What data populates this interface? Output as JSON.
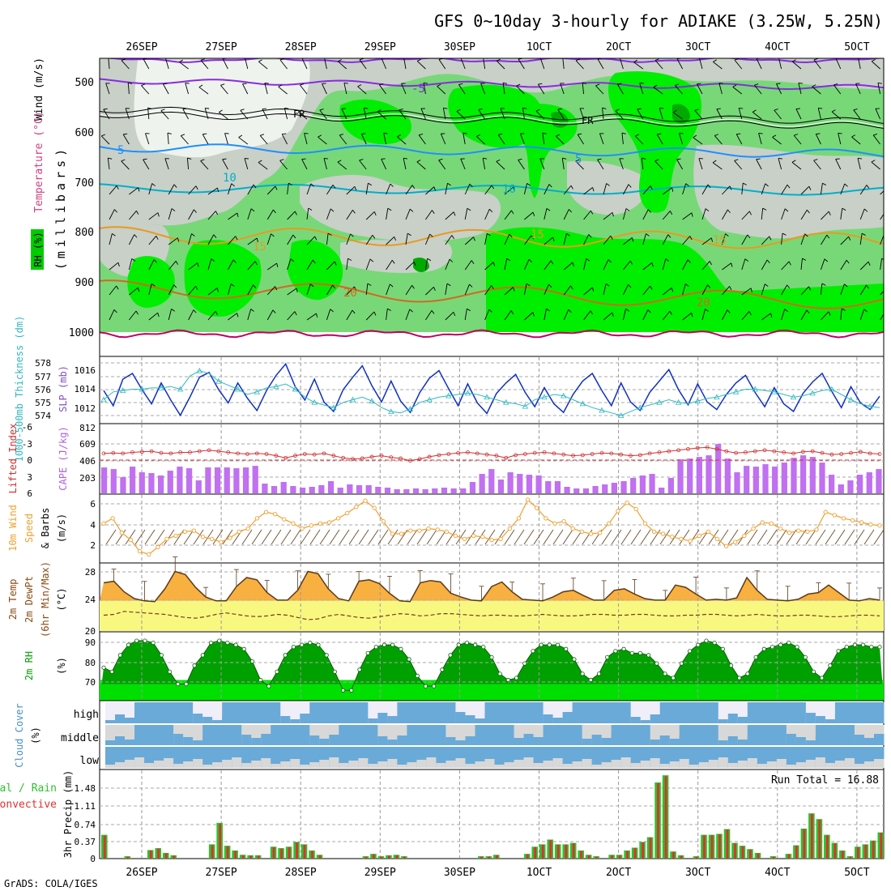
{
  "title": "GFS 0~10day 3-hourly for ADIAKE (3.25W, 5.25N)",
  "credit": "GrADS: COLA/IGES",
  "dates": [
    "26SEP",
    "27SEP",
    "28SEP",
    "29SEP",
    "30SEP",
    "1OCT",
    "2OCT",
    "3OCT",
    "4OCT",
    "5OCT"
  ],
  "colors": {
    "rh_light": "#c8d0c8",
    "rh_mid": "#78d878",
    "rh_high": "#00ee00",
    "rh_top": "#00aa00",
    "temp_purple": "#8a2be2",
    "temp_blue": "#1e90ff",
    "temp_cyan": "#00b0c8",
    "temp_orange": "#e89a20",
    "temp_dark_orange": "#d2691e",
    "temp_crimson": "#c00060",
    "slp": "#1030c0",
    "thickness": "#30b8c0",
    "lifted_index": "#d03030",
    "cape": "#c070f0",
    "wind10m": "#f0a030",
    "temp2m_fill": "#f8b040",
    "dewpt_fill": "#f8f880",
    "rh2m_dark": "#00a000",
    "rh2m_light": "#00e000",
    "cloud_blue": "#6aaad8",
    "cloud_gray": "#d8d8d8",
    "precip_green": "#30c030",
    "precip_red": "#e03030"
  },
  "panels": {
    "upper": {
      "label_rh": "RH (%)",
      "label_temp": "Temperature (°C)",
      "label_wind": "Wind (m/s)",
      "label_pressure": "(millibars)",
      "levels": [
        "500",
        "600",
        "700",
        "800",
        "900",
        "1000"
      ],
      "contour_labels": [
        "-5",
        "FR",
        "FR",
        "5",
        "5",
        "10",
        "10",
        "15",
        "15",
        "20",
        "20",
        "15"
      ]
    },
    "thickness": {
      "label_left": "1000-500mb Thickness (dm)",
      "label_right": "SLP (mb)",
      "thickness_ticks": [
        "578",
        "577",
        "576",
        "575",
        "574"
      ],
      "slp_ticks": [
        "1016",
        "1014",
        "1012"
      ]
    },
    "cape": {
      "label_left": "Lifted Index",
      "label_right": "CAPE (J/kg)",
      "li_ticks": [
        "-6",
        "-3",
        "0",
        "3",
        "6"
      ],
      "cape_ticks": [
        "812",
        "609",
        "406",
        "203"
      ]
    },
    "wind10m": {
      "label_a": "10m Wind",
      "label_b": "Speed",
      "label_c": "& Barbs",
      "label_unit": "(m/s)",
      "ticks": [
        "6",
        "4",
        "2"
      ]
    },
    "temp2m": {
      "label_a": "2m Temp",
      "label_b": "2m DewPt",
      "label_c": "(6hr Min/Max)",
      "label_unit": "(°C)",
      "ticks": [
        "28",
        "24",
        "20"
      ]
    },
    "rh2m": {
      "label_a": "2m RH",
      "label_unit": "(%)",
      "ticks": [
        "90",
        "80",
        "70"
      ]
    },
    "cloud": {
      "label_a": "Cloud Cover",
      "label_unit": "(%)",
      "layers": [
        "high",
        "middle",
        "low"
      ]
    },
    "precip": {
      "label_total": "Total / Rain",
      "label_conv": "Convective",
      "label_unit": "3hr Precip (mm)",
      "ticks": [
        "1.48",
        "1.11",
        "0.74",
        "0.37",
        "0"
      ],
      "run_total": "Run Total = 16.88"
    }
  },
  "chart_data": [
    {
      "type": "line",
      "title": "1000-500mb Thickness (dm) / SLP (mb)",
      "series": [
        {
          "name": "SLP (mb)",
          "values": [
            1014.2,
            1012.6,
            1015.4,
            1016.0,
            1014.3,
            1012.8,
            1015.0,
            1013.2,
            1011.6,
            1013.5,
            1015.6,
            1016.1,
            1014.3,
            1012.9,
            1015.0,
            1013.4,
            1012.1,
            1014.2,
            1015.8,
            1017.0,
            1014.6,
            1013.2,
            1015.4,
            1013.0,
            1012.0,
            1014.3,
            1015.6,
            1016.8,
            1014.7,
            1013.0,
            1015.2,
            1013.1,
            1011.9,
            1014.0,
            1015.5,
            1016.3,
            1014.4,
            1012.6,
            1014.9,
            1012.9,
            1011.8,
            1013.9,
            1015.0,
            1015.9,
            1014.0,
            1012.5,
            1014.5,
            1012.8,
            1011.9,
            1013.8,
            1015.2,
            1016.0,
            1014.2,
            1012.6,
            1015.0,
            1013.0,
            1012.1,
            1014.0,
            1015.2,
            1016.4,
            1014.3,
            1012.7,
            1014.9,
            1013.0,
            1012.2,
            1013.8,
            1015.0,
            1015.8,
            1014.0,
            1012.5,
            1014.5,
            1012.8,
            1012.0,
            1013.9,
            1015.1,
            1016.0,
            1014.1,
            1012.4,
            1014.6,
            1012.9,
            1012.2,
            1013.6
          ]
        },
        {
          "name": "Thickness (dm)",
          "values": [
            575.2,
            575.8,
            575.9,
            576.0,
            576.0,
            576.1,
            576.1,
            576.2,
            576.0,
            577.0,
            577.4,
            577.2,
            576.6,
            576.3,
            576.0,
            575.6,
            575.8,
            576.1,
            576.2,
            576.4,
            576.0,
            575.4,
            575.0,
            574.8,
            574.6,
            575.0,
            575.2,
            575.4,
            575.1,
            574.6,
            574.3,
            574.2,
            574.5,
            575.0,
            575.2,
            575.4,
            575.5,
            575.6,
            575.7,
            575.6,
            575.4,
            575.2,
            575.0,
            574.9,
            574.7,
            575.2,
            575.4,
            575.6,
            575.5,
            575.2,
            574.9,
            574.6,
            574.4,
            574.2,
            574.0,
            574.3,
            574.6,
            574.8,
            575.0,
            575.2,
            575.0,
            574.9,
            575.1,
            575.3,
            575.4,
            575.6,
            575.8,
            576.0,
            576.0,
            575.9,
            575.8,
            575.6,
            575.4,
            575.5,
            575.7,
            575.9,
            576.0,
            575.6,
            575.2,
            574.9,
            574.7,
            574.6
          ]
        }
      ]
    },
    {
      "type": "bar",
      "title": "Lifted Index / CAPE (J/kg)",
      "series": [
        {
          "name": "CAPE (J/kg)",
          "values": [
            320,
            300,
            200,
            330,
            260,
            250,
            220,
            280,
            330,
            310,
            160,
            320,
            320,
            320,
            310,
            320,
            340,
            120,
            90,
            140,
            90,
            70,
            80,
            100,
            150,
            70,
            110,
            100,
            100,
            80,
            70,
            50,
            50,
            60,
            50,
            60,
            70,
            60,
            60,
            140,
            240,
            300,
            170,
            260,
            240,
            230,
            220,
            150,
            150,
            80,
            60,
            60,
            90,
            110,
            130,
            150,
            190,
            220,
            240,
            70,
            190,
            420,
            430,
            450,
            470,
            610,
            430,
            260,
            340,
            330,
            360,
            330,
            380,
            440,
            470,
            450,
            380,
            230,
            110,
            160,
            230,
            260,
            300
          ]
        },
        {
          "name": "Lifted Index",
          "values": [
            -1.2,
            -1.3,
            -1.2,
            -1.4,
            -1.5,
            -1.6,
            -1.3,
            -1.2,
            -1.4,
            -1.4,
            -1.6,
            -1.8,
            -1.6,
            -1.4,
            -1.2,
            -1.1,
            -1.2,
            -1.1,
            -0.8,
            -0.4,
            -0.8,
            -1.1,
            -1.0,
            -1.2,
            -0.8,
            -0.4,
            -0.2,
            -0.3,
            -0.6,
            -0.8,
            -0.5,
            -0.3,
            0.1,
            -0.2,
            -0.6,
            -0.9,
            -1.1,
            -1.3,
            -1.4,
            -1.2,
            -1.0,
            -0.8,
            -0.4,
            -0.9,
            -1.1,
            -1.3,
            -1.4,
            -1.2,
            -1.0,
            -0.8,
            -0.9,
            -1.1,
            -1.3,
            -1.2,
            -1.0,
            -0.8,
            -0.9,
            -1.2,
            -1.4,
            -1.6,
            -1.8,
            -2.0,
            -2.2,
            -2.3,
            -2.0,
            -1.6,
            -1.3,
            -1.4,
            -1.6,
            -1.8,
            -1.6,
            -1.4,
            -1.2,
            -1.5,
            -1.6,
            -1.3,
            -1.0,
            -1.1,
            -1.3,
            -1.5,
            -1.2,
            -1.1
          ]
        }
      ]
    },
    {
      "type": "line",
      "title": "10m Wind Speed & Barbs (m/s)",
      "series": [
        {
          "name": "10m Wind Speed",
          "values": [
            4.1,
            4.6,
            3.2,
            2.5,
            1.4,
            1.1,
            1.8,
            2.6,
            2.9,
            3.3,
            3.4,
            2.8,
            2.6,
            2.3,
            2.7,
            3.3,
            3.6,
            4.6,
            5.2,
            5.0,
            4.5,
            4.1,
            3.6,
            3.9,
            4.1,
            4.2,
            4.6,
            5.1,
            5.7,
            6.3,
            5.6,
            4.3,
            3.1,
            3.1,
            3.4,
            3.4,
            3.6,
            3.5,
            3.3,
            2.9,
            2.6,
            2.9,
            2.8,
            2.5,
            2.6,
            3.6,
            4.6,
            6.4,
            5.6,
            4.6,
            4.1,
            4.3,
            3.6,
            3.3,
            3.1,
            3.2,
            4.1,
            5.3,
            6.1,
            5.5,
            4.1,
            3.3,
            3.1,
            2.8,
            2.6,
            2.4,
            2.9,
            3.3,
            2.6,
            1.9,
            2.3,
            2.9,
            3.6,
            4.2,
            4.1,
            3.6,
            3.2,
            3.4,
            3.3,
            3.5,
            5.2,
            4.9,
            4.6,
            4.4,
            4.2,
            4.0,
            3.9
          ]
        }
      ]
    },
    {
      "type": "area",
      "title": "2m Temp / 2m DewPt (6hr Min/Max) (°C)",
      "series": [
        {
          "name": "2m Temp",
          "values": [
            26.4,
            26.6,
            25.2,
            24.3,
            24.0,
            23.9,
            25.6,
            27.9,
            27.5,
            25.8,
            24.5,
            24.0,
            24.0,
            25.9,
            27.1,
            26.8,
            25.1,
            24.1,
            24.1,
            25.4,
            27.9,
            27.6,
            25.6,
            24.3,
            24.0,
            26.6,
            26.8,
            26.3,
            25.0,
            24.0,
            23.9,
            26.4,
            26.7,
            26.5,
            25.0,
            24.5,
            24.1,
            24.0,
            25.9,
            26.5,
            25.2,
            24.2,
            24.1,
            24.0,
            24.5,
            25.2,
            25.4,
            24.7,
            24.1,
            24.1,
            25.4,
            25.6,
            24.9,
            24.3,
            24.1,
            24.1,
            26.1,
            25.8,
            24.9,
            24.1,
            24.2,
            24.1,
            24.4,
            27.1,
            25.4,
            24.2,
            24.1,
            24.0,
            24.2,
            24.9,
            25.1,
            26.1,
            25.1,
            24.1,
            24.0,
            24.3,
            24.1
          ]
        },
        {
          "name": "2m DewPt",
          "values": [
            22.1,
            22.2,
            22.6,
            22.5,
            22.4,
            22.3,
            22.2,
            22.0,
            21.8,
            21.7,
            21.9,
            22.2,
            22.4,
            22.2,
            22.0,
            21.9,
            22.0,
            22.2,
            22.1,
            21.8,
            21.5,
            21.6,
            22.0,
            22.2,
            22.0,
            21.8,
            21.7,
            21.9,
            22.1,
            22.3,
            22.2,
            22.0,
            22.1,
            22.3,
            22.3,
            22.2,
            22.1,
            22.0,
            22.1,
            22.1,
            22.0,
            22.0,
            22.1,
            22.2,
            22.1,
            22.0,
            22.0,
            22.1,
            22.2,
            22.2,
            22.1,
            22.1,
            22.2,
            22.2,
            22.1,
            22.0,
            22.0,
            22.1,
            22.1,
            22.2,
            22.2,
            22.1,
            22.0,
            22.1,
            22.2,
            22.1,
            22.0,
            22.0,
            22.1,
            22.1,
            22.0,
            21.9,
            21.9,
            22.0,
            22.1,
            22.1,
            22.0
          ]
        }
      ]
    },
    {
      "type": "area",
      "title": "2m RH (%)",
      "series": [
        {
          "name": "2m RH",
          "values": [
            78,
            76,
            84,
            89,
            91,
            91,
            90,
            84,
            76,
            70,
            70,
            79,
            84,
            90,
            91,
            90,
            89,
            87,
            81,
            72,
            69,
            76,
            84,
            88,
            89,
            90,
            89,
            84,
            76,
            67,
            67,
            77,
            85,
            88,
            89,
            89,
            87,
            82,
            74,
            69,
            69,
            77,
            84,
            89,
            90,
            89,
            88,
            83,
            75,
            72,
            73,
            80,
            86,
            89,
            89,
            89,
            87,
            82,
            75,
            72,
            75,
            83,
            86,
            87,
            85,
            85,
            84,
            80,
            75,
            73,
            80,
            86,
            89,
            91,
            90,
            87,
            79,
            73,
            75,
            83,
            87,
            88,
            89,
            90,
            88,
            83,
            76,
            73,
            79,
            86,
            88,
            89,
            89,
            88,
            88
          ]
        }
      ]
    },
    {
      "type": "bar",
      "title": "3hr Precip (mm) Total / Rain / Convective",
      "run_total": 16.88,
      "series": [
        {
          "name": "Total",
          "values": [
            0.5,
            0,
            0,
            0.05,
            0,
            0,
            0.18,
            0.22,
            0.12,
            0.07,
            0,
            0,
            0,
            0,
            0.3,
            0.75,
            0.27,
            0.17,
            0.08,
            0.07,
            0.07,
            0,
            0.25,
            0.22,
            0.25,
            0.35,
            0.3,
            0.17,
            0.08,
            0,
            0,
            0,
            0,
            0,
            0.05,
            0.1,
            0.05,
            0.07,
            0.08,
            0.05,
            0,
            0,
            0,
            0,
            0,
            0,
            0,
            0,
            0,
            0.05,
            0.05,
            0.08,
            0,
            0,
            0,
            0.1,
            0.25,
            0.3,
            0.4,
            0.3,
            0.3,
            0.33,
            0.17,
            0.08,
            0.05,
            0,
            0.08,
            0.08,
            0.17,
            0.23,
            0.35,
            0.45,
            1.6,
            1.75,
            0.15,
            0.07,
            0,
            0.05,
            0.5,
            0.5,
            0.52,
            0.62,
            0.33,
            0.27,
            0.2,
            0.12,
            0,
            0.05,
            0,
            0.1,
            0.28,
            0.63,
            0.95,
            0.83,
            0.5,
            0.33,
            0.17,
            0.05,
            0.25,
            0.3,
            0.38,
            0.55
          ]
        },
        {
          "name": "Convective",
          "values": [
            0.48,
            0,
            0,
            0.04,
            0,
            0,
            0.17,
            0.21,
            0.11,
            0.06,
            0,
            0,
            0,
            0,
            0.28,
            0.73,
            0.26,
            0.16,
            0.07,
            0.06,
            0.06,
            0,
            0.24,
            0.21,
            0.24,
            0.34,
            0.29,
            0.16,
            0.07,
            0,
            0,
            0,
            0,
            0,
            0.04,
            0.09,
            0.04,
            0.06,
            0.07,
            0.04,
            0,
            0,
            0,
            0,
            0,
            0,
            0,
            0,
            0,
            0.04,
            0.04,
            0.07,
            0,
            0,
            0,
            0.09,
            0.24,
            0.29,
            0.39,
            0.29,
            0.29,
            0.32,
            0.16,
            0.07,
            0.04,
            0,
            0.07,
            0.07,
            0.16,
            0.22,
            0.34,
            0.44,
            1.58,
            1.73,
            0.14,
            0.06,
            0,
            0.04,
            0.49,
            0.49,
            0.51,
            0.61,
            0.32,
            0.26,
            0.19,
            0.11,
            0,
            0.04,
            0,
            0.09,
            0.27,
            0.62,
            0.94,
            0.82,
            0.49,
            0.32,
            0.16,
            0.04,
            0.24,
            0.29,
            0.37,
            0.54
          ]
        }
      ]
    }
  ]
}
